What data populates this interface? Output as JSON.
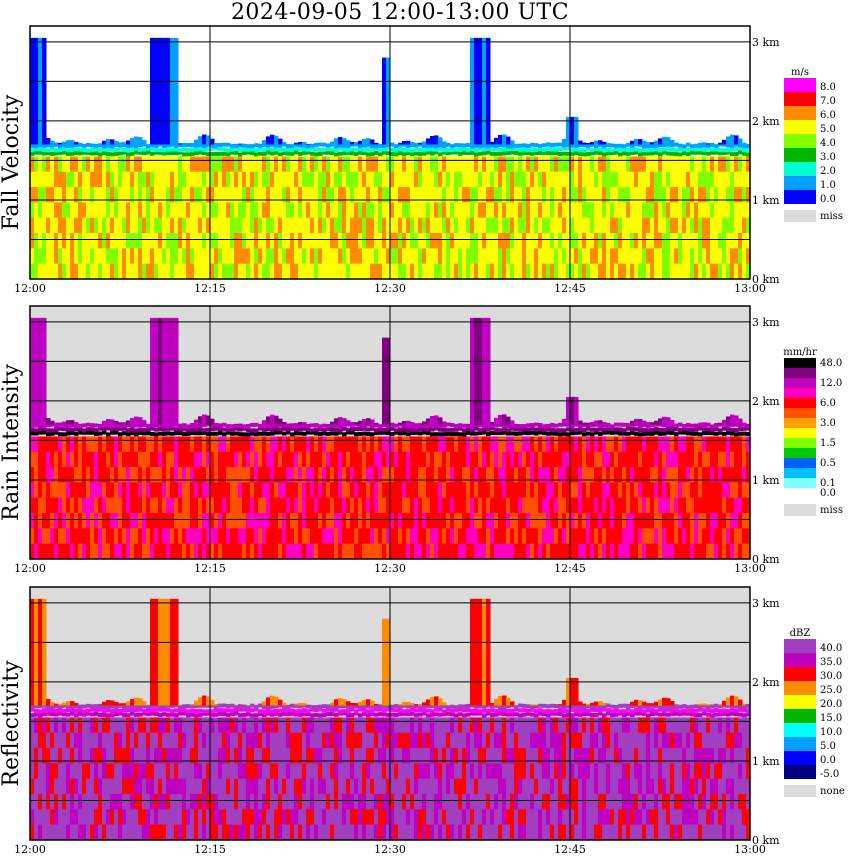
{
  "title": "2024-09-05   12:00-13:00 UTC",
  "chart_data": [
    {
      "type": "heatmap",
      "ylabel": "Fall Velocity",
      "unit": "m/s",
      "missing_label": "miss",
      "x_ticks": [
        "12:00",
        "12:15",
        "12:30",
        "12:45",
        "13:00"
      ],
      "y_ticks": [
        "0 km",
        "1 km",
        "2 km",
        "3 km"
      ],
      "ylim_km": [
        0,
        3.2
      ],
      "legend": [
        {
          "label": "8.0",
          "color": "#ff00ff"
        },
        {
          "label": "7.0",
          "color": "#ff0000"
        },
        {
          "label": "6.0",
          "color": "#ff8c00"
        },
        {
          "label": "5.0",
          "color": "#ffff00"
        },
        {
          "label": "4.0",
          "color": "#80ff00"
        },
        {
          "label": "3.0",
          "color": "#00b400"
        },
        {
          "label": "2.0",
          "color": "#00ffd0"
        },
        {
          "label": "1.0",
          "color": "#00a0ff"
        },
        {
          "label": "0.0",
          "color": "#0000ff"
        }
      ],
      "missing_color": "#dcdcdc",
      "background_color": "#ffffff",
      "bright_band_km": 1.55,
      "rain_colors": [
        "#ffff00",
        "#ffff00",
        "#ff8c00",
        "#80ff00"
      ],
      "edge_colors": [
        "#00b400",
        "#00ffd0",
        "#00a0ff"
      ],
      "cloud_colors": [
        "#0000ff",
        "#00a0ff"
      ]
    },
    {
      "type": "heatmap",
      "ylabel": "Rain Intensity",
      "unit": "mm/hr",
      "missing_label": "miss",
      "x_ticks": [
        "12:00",
        "12:15",
        "12:30",
        "12:45",
        "13:00"
      ],
      "y_ticks": [
        "0 km",
        "1 km",
        "2 km",
        "3 km"
      ],
      "ylim_km": [
        0,
        3.2
      ],
      "legend": [
        {
          "label": "48.0",
          "color": "#000000"
        },
        {
          "label": "",
          "color": "#800080"
        },
        {
          "label": "12.0",
          "color": "#c000c0"
        },
        {
          "label": "",
          "color": "#ff00c0"
        },
        {
          "label": "6.0",
          "color": "#ff0000"
        },
        {
          "label": "",
          "color": "#ff5000"
        },
        {
          "label": "3.0",
          "color": "#ffa000"
        },
        {
          "label": "",
          "color": "#ffff00"
        },
        {
          "label": "1.5",
          "color": "#80ff00"
        },
        {
          "label": "",
          "color": "#00c800"
        },
        {
          "label": "0.5",
          "color": "#0060ff"
        },
        {
          "label": "",
          "color": "#00c0ff"
        },
        {
          "label": "0.1",
          "color": "#80ffff"
        },
        {
          "label": "0.0",
          "color": "#ffffff"
        }
      ],
      "missing_color": "#dcdcdc",
      "background_color": "#dcdcdc",
      "bright_band_km": 1.55,
      "rain_colors": [
        "#ff0000",
        "#ff0000",
        "#ff00c0",
        "#ff5000"
      ],
      "edge_colors": [
        "#000000",
        "#800080",
        "#c000c0"
      ],
      "cloud_colors": [
        "#800080",
        "#c000c0"
      ]
    },
    {
      "type": "heatmap",
      "ylabel": "Reflectivity",
      "unit": "dBZ",
      "missing_label": "none",
      "x_ticks": [
        "12:00",
        "12:15",
        "12:30",
        "12:45",
        "13:00"
      ],
      "y_ticks": [
        "0 km",
        "1 km",
        "2 km",
        "3 km"
      ],
      "ylim_km": [
        0,
        3.2
      ],
      "legend": [
        {
          "label": "40.0",
          "color": "#a040c0"
        },
        {
          "label": "35.0",
          "color": "#c000c0"
        },
        {
          "label": "30.0",
          "color": "#ff0000"
        },
        {
          "label": "25.0",
          "color": "#ff8c00"
        },
        {
          "label": "20.0",
          "color": "#ffff00"
        },
        {
          "label": "15.0",
          "color": "#00b400"
        },
        {
          "label": "10.0",
          "color": "#00ffff"
        },
        {
          "label": "5.0",
          "color": "#00a0ff"
        },
        {
          "label": "0.0",
          "color": "#0000ff"
        },
        {
          "label": "-5.0",
          "color": "#000080"
        }
      ],
      "missing_color": "#dcdcdc",
      "background_color": "#dcdcdc",
      "bright_band_km": 1.55,
      "rain_colors": [
        "#a040c0",
        "#a040c0",
        "#ff0000",
        "#c000c0"
      ],
      "edge_colors": [
        "#c000c0",
        "#ff00ff",
        "#a040c0"
      ],
      "cloud_colors": [
        "#ff0000",
        "#ff8c00"
      ]
    }
  ]
}
